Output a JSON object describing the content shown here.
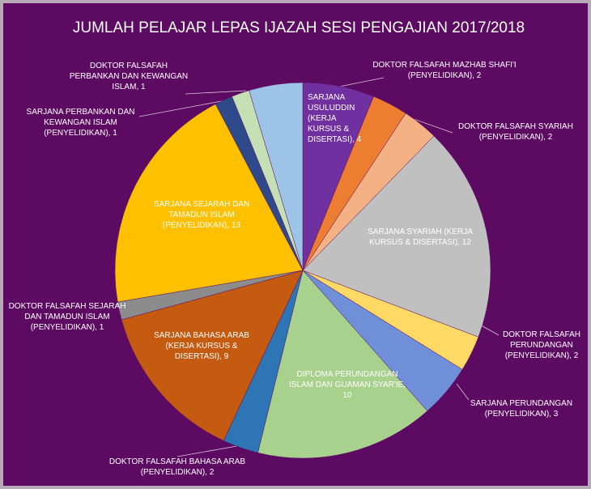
{
  "chart_data": {
    "type": "pie",
    "title": "JUMLAH PELAJAR LEPAS IJAZAH SESI PENGAJIAN 2017/2018",
    "categories": [
      "SARJANA USULUDDIN (KERJA KURSUS & DISERTASI)",
      "DOKTOR FALSAFAH MAZHAB SHAFI'I (PENYELIDIKAN)",
      "DOKTOR FALSAFAH SYARIAH (PENYELIDIKAN)",
      "SARJANA SYARIAH (KERJA KURSUS & DISERTASI)",
      "DOKTOR FALSAFAH PERUNDANGAN (PENYELIDIKAN)",
      "SARJANA PERUNDANGAN (PENYELIDIKAN)",
      "DIPLOMA PERUNDANGAN ISLAM DAN GUAMAN SYAR'IE",
      "DOKTOR FALSAFAH BAHASA ARAB (PENYELIDIKAN)",
      "SARJANA BAHASA ARAB (KERJA KURSUS & DISERTASI)",
      "DOKTOR FALSAFAH SEJARAH DAN TAMADUN ISLAM (PENYELIDIKAN)",
      "SARJANA SEJARAH DAN TAMADUN ISLAM (PENYELIDIKAN)",
      "SARJANA PERBANKAN DAN KEWANGAN ISLAM (PENYELIDIKAN)",
      "DOKTOR FALSAFAH PERBANKAN DAN KEWANGAN ISLAM",
      null
    ],
    "values": [
      4,
      2,
      2,
      12,
      2,
      3,
      10,
      2,
      9,
      1,
      13,
      1,
      1,
      3
    ],
    "colors": [
      "#7030a0",
      "#ed7d31",
      "#f4b183",
      "#c0c0c0",
      "#ffd966",
      "#6f8fd8",
      "#a9d18e",
      "#2e75b6",
      "#c55a11",
      "#8c8c8c",
      "#ffc000",
      "#2f4a8a",
      "#c5e0b4",
      "#9dc3e6"
    ]
  }
}
